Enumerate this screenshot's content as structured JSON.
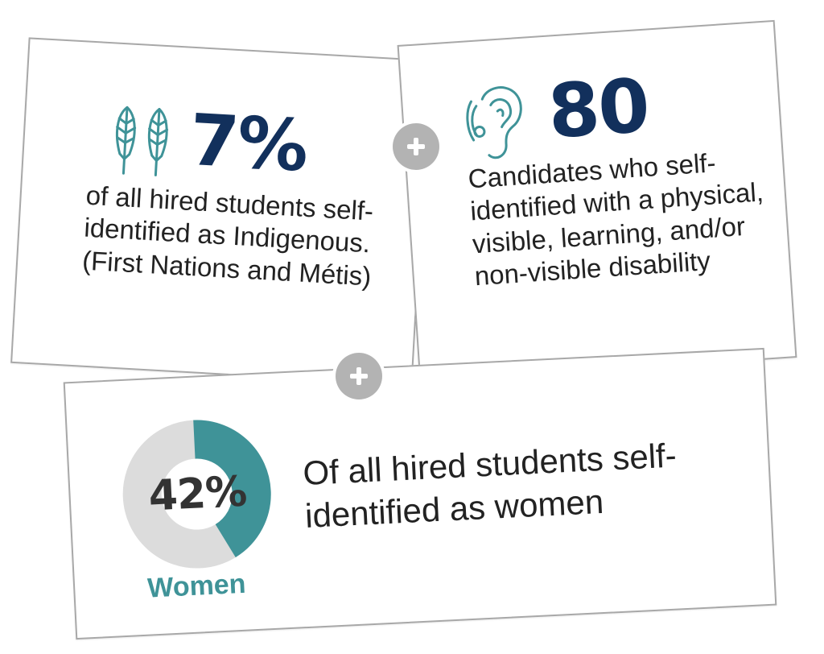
{
  "indigenous_card": {
    "stat": "7%",
    "description": "of all hired students self-identified as Indigenous. (First Nations and Métis)",
    "icon": "feathers-icon",
    "accent_color": "#3f9398",
    "stat_color": "#12305c"
  },
  "disability_card": {
    "stat": "80",
    "description": "Candidates who self-identified with a physical, visible, learning, and/or non-visible disability",
    "icon": "ear-hearing-aid-icon",
    "accent_color": "#3f9398",
    "stat_color": "#12305c"
  },
  "women_card": {
    "percent_label": "42%",
    "percent_value": 42,
    "label": "Women",
    "description": "Of all hired students self-identified as women",
    "ring_fill_color": "#3f9398",
    "ring_track_color": "#dcdcdc"
  },
  "connectors": {
    "icon": "plus-icon",
    "color": "#b3b3b3"
  }
}
